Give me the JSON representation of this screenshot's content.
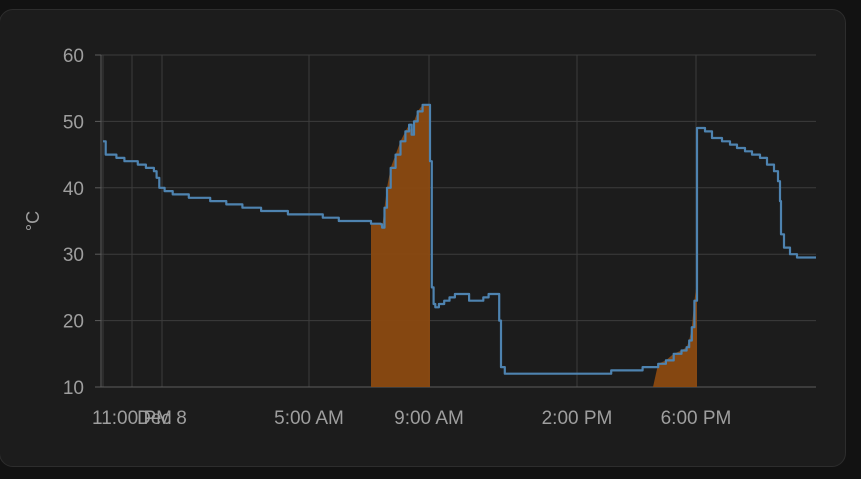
{
  "chart_data": {
    "type": "line",
    "ylabel": "°C",
    "ylim": [
      10,
      60
    ],
    "xlim_hours": [
      23.0,
      27.5
    ],
    "y_ticks": [
      10,
      20,
      30,
      40,
      50,
      60
    ],
    "x_ticks": [
      {
        "label": "11:00 PM",
        "t": 23.0
      },
      {
        "label": "Dec 8",
        "t": 24.0
      },
      {
        "label": "5:00 AM",
        "t": 29.0
      },
      {
        "label": "9:00 AM",
        "t": 33.0
      },
      {
        "label": "2:00 PM",
        "t": 38.0
      },
      {
        "label": "6:00 PM",
        "t": 42.0
      }
    ],
    "x_start_hour": 22.0,
    "x_end_hour": 46.2,
    "grid": true,
    "series": [
      {
        "color": "#4e83b0",
        "points": [
          [
            22.0,
            47
          ],
          [
            22.1,
            45
          ],
          [
            22.5,
            44.5
          ],
          [
            22.8,
            44
          ],
          [
            23.3,
            43.5
          ],
          [
            23.6,
            43
          ],
          [
            23.9,
            42.5
          ],
          [
            24.0,
            41.5
          ],
          [
            24.1,
            40
          ],
          [
            24.3,
            39.5
          ],
          [
            24.6,
            39
          ],
          [
            25.2,
            38.5
          ],
          [
            26.0,
            38
          ],
          [
            26.6,
            37.5
          ],
          [
            27.2,
            37
          ],
          [
            27.9,
            36.5
          ],
          [
            28.9,
            36
          ],
          [
            30.2,
            35.5
          ],
          [
            30.8,
            35
          ],
          [
            32.0,
            34.6
          ],
          [
            32.8,
            34.5
          ],
          [
            32.9,
            34
          ],
          [
            33.1,
            37
          ],
          [
            33.3,
            40
          ],
          [
            33.6,
            43
          ],
          [
            34.0,
            45
          ],
          [
            34.4,
            47
          ],
          [
            34.8,
            48.5
          ],
          [
            35.1,
            49.5
          ],
          [
            35.3,
            48
          ],
          [
            35.5,
            50
          ],
          [
            35.8,
            51.5
          ],
          [
            36.2,
            52.5
          ],
          [
            36.5,
            52.5
          ],
          [
            36.75,
            52.5
          ],
          [
            36.8,
            44
          ],
          [
            36.9,
            25
          ],
          [
            37.0,
            22.5
          ],
          [
            37.1,
            22
          ],
          [
            37.3,
            22.5
          ],
          [
            37.6,
            23
          ],
          [
            37.9,
            23.5
          ],
          [
            38.2,
            24
          ],
          [
            38.7,
            24
          ],
          [
            39.0,
            23
          ],
          [
            39.5,
            23
          ],
          [
            39.8,
            23.5
          ],
          [
            40.1,
            24
          ],
          [
            40.6,
            24
          ],
          [
            40.7,
            20
          ],
          [
            40.8,
            13
          ],
          [
            40.9,
            12
          ],
          [
            43.6,
            12
          ],
          [
            43.7,
            12.5
          ],
          [
            43.9,
            12.5
          ],
          [
            44.3,
            13
          ],
          [
            44.7,
            13.5
          ],
          [
            45.0,
            14
          ],
          [
            45.3,
            15
          ],
          [
            45.6,
            15.5
          ],
          [
            45.8,
            16
          ],
          [
            45.9,
            17
          ],
          [
            46.0,
            19
          ],
          [
            46.1,
            23
          ],
          [
            46.2,
            26
          ]
        ]
      }
    ],
    "shaded_regions": [
      {
        "color": "#8b4a11",
        "from": 32.1,
        "to": 36.8
      },
      {
        "color": "#8b4a11",
        "from": 44.5,
        "to": 46.2
      }
    ]
  }
}
